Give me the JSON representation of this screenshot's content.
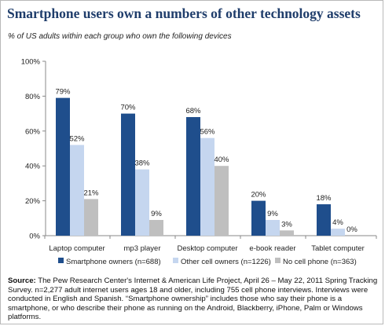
{
  "chart_data": {
    "type": "bar",
    "title": "Smartphone users own a numbers of other technology assets",
    "subtitle": "% of US adults within each group who own the following devices",
    "categories": [
      "Laptop computer",
      "mp3 player",
      "Desktop computer",
      "e-book reader",
      "Tablet computer"
    ],
    "series": [
      {
        "name": "Smartphone owners (n=688)",
        "color": "#1f4e8c",
        "values": [
          79,
          70,
          68,
          20,
          18
        ],
        "labels": [
          "79%",
          "70%",
          "68%",
          "20%",
          "18%"
        ]
      },
      {
        "name": "Other cell owners (n=1226)",
        "color": "#c5d6ef",
        "values": [
          52,
          38,
          56,
          9,
          4
        ],
        "labels": [
          "52%",
          "38%",
          "56%",
          "9%",
          "4%"
        ]
      },
      {
        "name": "No cell phone (n=363)",
        "color": "#bfbfbf",
        "values": [
          21,
          9,
          40,
          3,
          0
        ],
        "labels": [
          "21%",
          "9%",
          "40%",
          "3%",
          "0%"
        ]
      }
    ],
    "yticks": [
      "0%",
      "20%",
      "40%",
      "60%",
      "80%",
      "100%"
    ],
    "ylim": [
      0,
      100
    ],
    "grid": false,
    "legend_position": "bottom"
  },
  "source": {
    "label": "Source:",
    "text": "The Pew Research Center's Internet & American Life Project, April 26 – May 22, 2011 Spring Tracking Survey. n=2,277 adult internet users ages 18 and older, including 755 cell phone interviews. Interviews were conducted in English and Spanish. “Smartphone ownership” includes those who say their phone is a smartphone, or who describe their phone as running on the Android, Blackberry, iPhone, Palm or Windows platforms."
  }
}
